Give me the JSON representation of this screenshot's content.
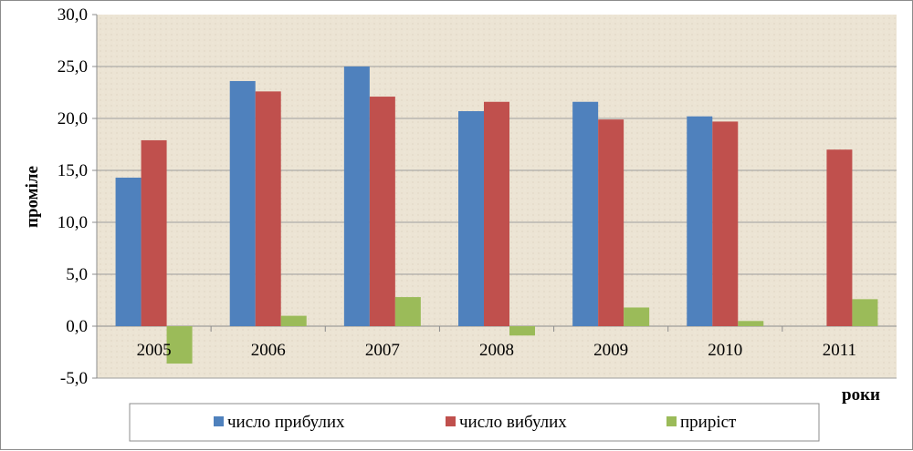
{
  "chart_data": {
    "type": "bar",
    "title": "",
    "xlabel": "роки",
    "ylabel": "проміле",
    "categories": [
      "2005",
      "2006",
      "2007",
      "2008",
      "2009",
      "2010",
      "2011"
    ],
    "series": [
      {
        "name": "число прибулих",
        "color": "#4f81bd",
        "values": [
          14.3,
          23.6,
          25.0,
          20.7,
          21.6,
          20.2,
          null
        ]
      },
      {
        "name": "число вибулих",
        "color": "#c0504d",
        "values": [
          17.9,
          22.6,
          22.1,
          21.6,
          19.9,
          19.7,
          17.0
        ]
      },
      {
        "name": "приріст",
        "color": "#9bbb59",
        "values": [
          -3.6,
          1.0,
          2.8,
          -0.9,
          1.8,
          0.5,
          2.6
        ]
      }
    ],
    "ylim": [
      -5,
      30
    ],
    "yticks": [
      "30,0",
      "25,0",
      "20,0",
      "15,0",
      "10,0",
      "5,0",
      "0,0",
      "-5,0"
    ],
    "grid": true,
    "legend_position": "bottom",
    "plot_background": "#ece4d4"
  }
}
